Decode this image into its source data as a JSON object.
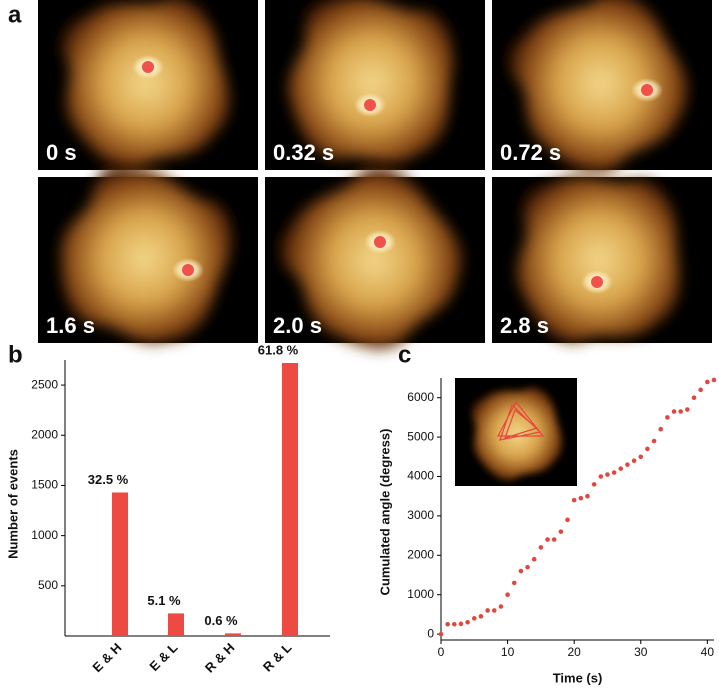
{
  "panel_labels": [
    "a",
    "b",
    "c"
  ],
  "panel_a": {
    "frames": [
      "0 s",
      "0.32 s",
      "0.72 s",
      "1.6 s",
      "2.0 s",
      "2.8 s"
    ]
  },
  "chart_data": [
    {
      "type": "bar",
      "y_label": "Number of events",
      "categories": [
        "E & H",
        "E & L",
        "R & H",
        "R & L"
      ],
      "values": [
        1430,
        225,
        26,
        2720
      ],
      "percent_labels": [
        "32.5 %",
        "5.1 %",
        "0.6 %",
        "61.8 %"
      ],
      "color": "#ec4a42",
      "ylim": [
        0,
        2750
      ],
      "yticks": [
        500,
        1000,
        1500,
        2000,
        2500
      ]
    },
    {
      "type": "scatter",
      "x_label": "Time (s)",
      "y_label": "Cumulated angle (degress)",
      "x": [
        0,
        1,
        2,
        3,
        4,
        5,
        6,
        7,
        8,
        9,
        10,
        11,
        12,
        13,
        14,
        15,
        16,
        17,
        18,
        19,
        20,
        21,
        22,
        23,
        24,
        25,
        26,
        27,
        28,
        29,
        30,
        31,
        32,
        33,
        34,
        35,
        36,
        37,
        38,
        39,
        40,
        41
      ],
      "values": [
        0,
        250,
        250,
        260,
        300,
        400,
        450,
        600,
        600,
        700,
        1000,
        1300,
        1600,
        1700,
        1900,
        2200,
        2400,
        2400,
        2600,
        2900,
        3400,
        3450,
        3500,
        3800,
        4000,
        4050,
        4100,
        4200,
        4300,
        4400,
        4500,
        4700,
        4900,
        5200,
        5500,
        5650,
        5650,
        5700,
        6000,
        6200,
        6400,
        6450
      ],
      "color": "#e0483f",
      "xlim": [
        0,
        41
      ],
      "ylim": [
        -150,
        6500
      ],
      "xticks": [
        0,
        10,
        20,
        30,
        40
      ],
      "yticks": [
        0,
        1000,
        2000,
        3000,
        4000,
        5000,
        6000
      ]
    }
  ]
}
